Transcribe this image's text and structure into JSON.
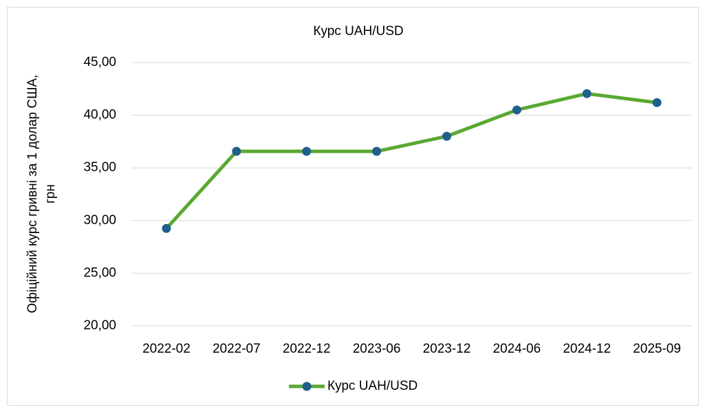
{
  "chart_data": {
    "type": "line",
    "title": "Курс UAH/USD",
    "ylabel": [
      "Офіційний курс гривні за 1 долар США,",
      "грн"
    ],
    "categories": [
      "2022-02",
      "2022-07",
      "2022-12",
      "2023-06",
      "2023-12",
      "2024-06",
      "2024-12",
      "2025-09"
    ],
    "series": [
      {
        "name": "Курс UAH/USD",
        "color": "#5aa832",
        "marker_color": "#1f5f8b",
        "values": [
          29.25,
          36.57,
          36.57,
          36.57,
          38.0,
          40.5,
          42.05,
          41.2
        ]
      }
    ],
    "ylim": [
      20,
      45
    ],
    "yticks": [
      {
        "value": 20,
        "label": "20,00"
      },
      {
        "value": 25,
        "label": "25,00"
      },
      {
        "value": 30,
        "label": "30,00"
      },
      {
        "value": 35,
        "label": "35,00"
      },
      {
        "value": 40,
        "label": "40,00"
      },
      {
        "value": 45,
        "label": "45,00"
      }
    ],
    "grid": true,
    "legend": "bottom"
  }
}
